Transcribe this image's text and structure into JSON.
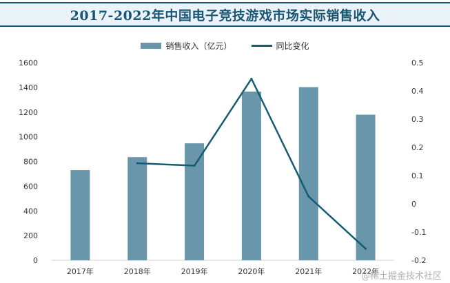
{
  "title": "2017-2022年中国电子竞技游戏市场实际销售收入",
  "legend": {
    "bar_label": "销售收入（亿元）",
    "line_label": "同比变化"
  },
  "watermark": "@稀土掘金技术社区",
  "colors": {
    "bar": "#6a96ac",
    "line": "#145c73",
    "title": "#1a5574"
  },
  "chart_data": {
    "type": "bar",
    "categories": [
      "2017年",
      "2018年",
      "2019年",
      "2020年",
      "2021年",
      "2022年"
    ],
    "series": [
      {
        "name": "销售收入（亿元）",
        "type": "bar",
        "axis": "left",
        "values": [
          730,
          835,
          947,
          1366,
          1402,
          1179
        ]
      },
      {
        "name": "同比变化",
        "type": "line",
        "axis": "right",
        "values": [
          null,
          0.144,
          0.135,
          0.443,
          0.026,
          -0.159
        ]
      }
    ],
    "y_left": {
      "ylim": [
        0,
        1600
      ],
      "ticks": [
        0,
        200,
        400,
        600,
        800,
        1000,
        1200,
        1400,
        1600
      ]
    },
    "y_right": {
      "ylim": [
        -0.2,
        0.5
      ],
      "ticks": [
        -0.2,
        -0.1,
        0,
        0.1,
        0.2,
        0.3,
        0.4,
        0.5
      ],
      "tick_labels": [
        "-0.2",
        "-0.1",
        "0",
        "0.1",
        "0.2",
        "0.3",
        "0.4",
        "0.5"
      ]
    },
    "legend_position": "top-center",
    "grid": false
  }
}
